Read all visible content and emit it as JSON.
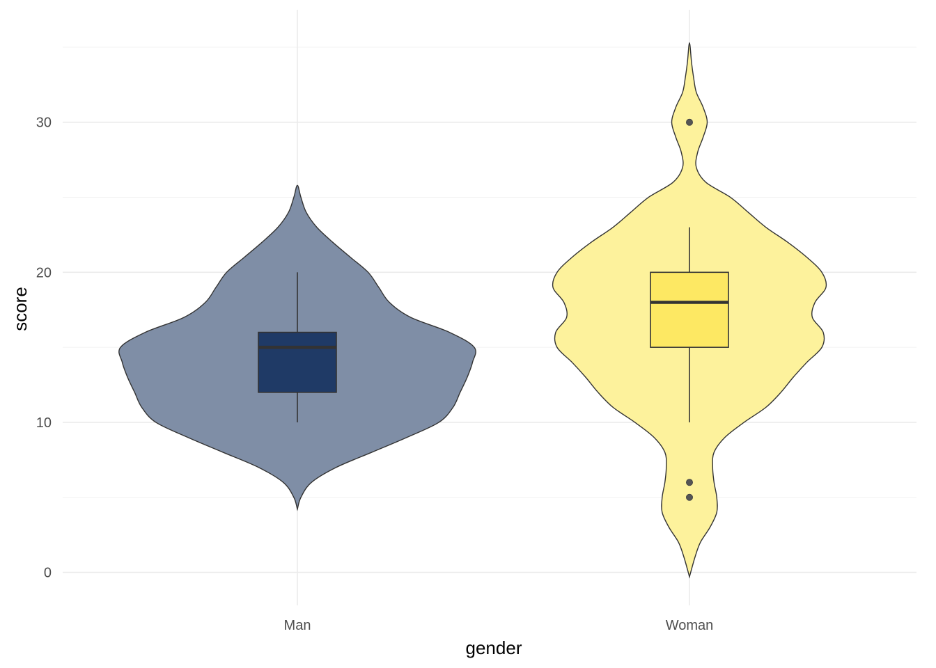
{
  "chart_data": {
    "type": "violin",
    "xlabel": "gender",
    "ylabel": "score",
    "ylim": [
      -2.2,
      37.5
    ],
    "y_ticks": [
      0,
      10,
      20,
      30
    ],
    "y_minor_ticks": [
      5,
      15,
      25,
      35
    ],
    "grid": true,
    "legend": "none",
    "categories": [
      "Man",
      "Woman"
    ],
    "groups": [
      {
        "category": "Man",
        "fill": "#1f3a66",
        "violin_fill": "#7f8ea6",
        "box": {
          "lower": 12,
          "q1": 12,
          "median": 15,
          "q3": 16,
          "upper": 20,
          "whisker_low": 10,
          "whisker_high": 20
        },
        "outliers": [],
        "density": [
          [
            4.2,
            0.0
          ],
          [
            5.0,
            0.02
          ],
          [
            6.0,
            0.08
          ],
          [
            7.0,
            0.22
          ],
          [
            8.0,
            0.42
          ],
          [
            9.0,
            0.62
          ],
          [
            10.0,
            0.8
          ],
          [
            11.0,
            0.88
          ],
          [
            12.0,
            0.92
          ],
          [
            13.0,
            0.96
          ],
          [
            14.0,
            0.99
          ],
          [
            15.0,
            1.0
          ],
          [
            16.0,
            0.86
          ],
          [
            17.0,
            0.64
          ],
          [
            18.0,
            0.52
          ],
          [
            19.0,
            0.46
          ],
          [
            20.0,
            0.4
          ],
          [
            21.0,
            0.3
          ],
          [
            22.0,
            0.2
          ],
          [
            23.0,
            0.11
          ],
          [
            24.0,
            0.05
          ],
          [
            25.0,
            0.02
          ],
          [
            25.8,
            0.0
          ]
        ]
      },
      {
        "category": "Woman",
        "fill": "#fde863",
        "violin_fill": "#fdf29c",
        "box": {
          "q1": 15,
          "median": 18,
          "q3": 20,
          "whisker_low": 10,
          "whisker_high": 23
        },
        "outliers": [
          30,
          6,
          5
        ],
        "density": [
          [
            -0.3,
            0.0
          ],
          [
            1.0,
            0.04
          ],
          [
            2.0,
            0.08
          ],
          [
            3.0,
            0.15
          ],
          [
            4.0,
            0.2
          ],
          [
            5.0,
            0.2
          ],
          [
            6.0,
            0.18
          ],
          [
            7.0,
            0.17
          ],
          [
            8.0,
            0.18
          ],
          [
            9.0,
            0.26
          ],
          [
            10.0,
            0.4
          ],
          [
            11.0,
            0.56
          ],
          [
            12.0,
            0.67
          ],
          [
            13.0,
            0.76
          ],
          [
            14.0,
            0.86
          ],
          [
            15.0,
            0.97
          ],
          [
            16.0,
            0.98
          ],
          [
            17.0,
            0.9
          ],
          [
            18.0,
            0.92
          ],
          [
            19.0,
            1.0
          ],
          [
            20.0,
            0.97
          ],
          [
            21.0,
            0.86
          ],
          [
            22.0,
            0.72
          ],
          [
            23.0,
            0.56
          ],
          [
            24.0,
            0.43
          ],
          [
            25.0,
            0.3
          ],
          [
            26.0,
            0.12
          ],
          [
            27.0,
            0.05
          ],
          [
            28.0,
            0.06
          ],
          [
            29.0,
            0.1
          ],
          [
            30.0,
            0.13
          ],
          [
            31.0,
            0.1
          ],
          [
            32.0,
            0.05
          ],
          [
            33.0,
            0.03
          ],
          [
            34.0,
            0.015
          ],
          [
            35.3,
            0.0
          ]
        ]
      }
    ]
  }
}
